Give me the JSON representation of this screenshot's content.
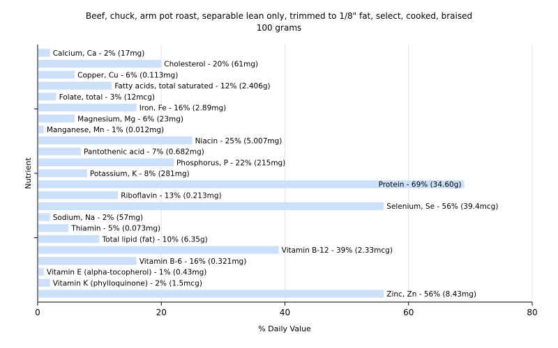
{
  "chart_data": {
    "type": "bar",
    "orientation": "horizontal",
    "title": "Beef, chuck, arm pot roast, separable lean only, trimmed to 1/8\" fat, select, cooked, braised",
    "subtitle": "100 grams",
    "xlabel": "% Daily Value",
    "ylabel": "Nutrient",
    "xlim": [
      0,
      80
    ],
    "x_ticks": [
      "0",
      "20",
      "40",
      "60",
      "80"
    ],
    "grid": true,
    "legend": "none",
    "bar_color": "#cce0fa",
    "categories": [
      "Calcium, Ca",
      "Cholesterol",
      "Copper, Cu",
      "Fatty acids, total saturated",
      "Folate, total",
      "Iron, Fe",
      "Magnesium, Mg",
      "Manganese, Mn",
      "Niacin",
      "Pantothenic acid",
      "Phosphorus, P",
      "Potassium, K",
      "Protein",
      "Riboflavin",
      "Selenium, Se",
      "Sodium, Na",
      "Thiamin",
      "Total lipid (fat)",
      "Vitamin B-12",
      "Vitamin B-6",
      "Vitamin E (alpha-tocopherol)",
      "Vitamin K (phylloquinone)",
      "Zinc, Zn"
    ],
    "values": [
      2,
      20,
      6,
      12,
      3,
      16,
      6,
      1,
      25,
      7,
      22,
      8,
      69,
      13,
      56,
      2,
      5,
      10,
      39,
      16,
      1,
      2,
      56
    ],
    "labels": [
      "Calcium, Ca - 2% (17mg)",
      "Cholesterol - 20% (61mg)",
      "Copper, Cu - 6% (0.113mg)",
      "Fatty acids, total saturated - 12% (2.406g)",
      "Folate, total - 3% (12mcg)",
      "Iron, Fe - 16% (2.89mg)",
      "Magnesium, Mg - 6% (23mg)",
      "Manganese, Mn - 1% (0.012mg)",
      "Niacin - 25% (5.007mg)",
      "Pantothenic acid - 7% (0.682mg)",
      "Phosphorus, P - 22% (215mg)",
      "Potassium, K - 8% (281mg)",
      "Protein - 69% (34.60g)",
      "Riboflavin - 13% (0.213mg)",
      "Selenium, Se - 56% (39.4mcg)",
      "Sodium, Na - 2% (57mg)",
      "Thiamin - 5% (0.073mg)",
      "Total lipid (fat) - 10% (6.35g)",
      "Vitamin B-12 - 39% (2.33mcg)",
      "Vitamin B-6 - 16% (0.321mg)",
      "Vitamin E (alpha-tocopherol) - 1% (0.43mg)",
      "Vitamin K (phylloquinone) - 2% (1.5mcg)",
      "Zinc, Zn - 56% (8.43mg)"
    ]
  }
}
